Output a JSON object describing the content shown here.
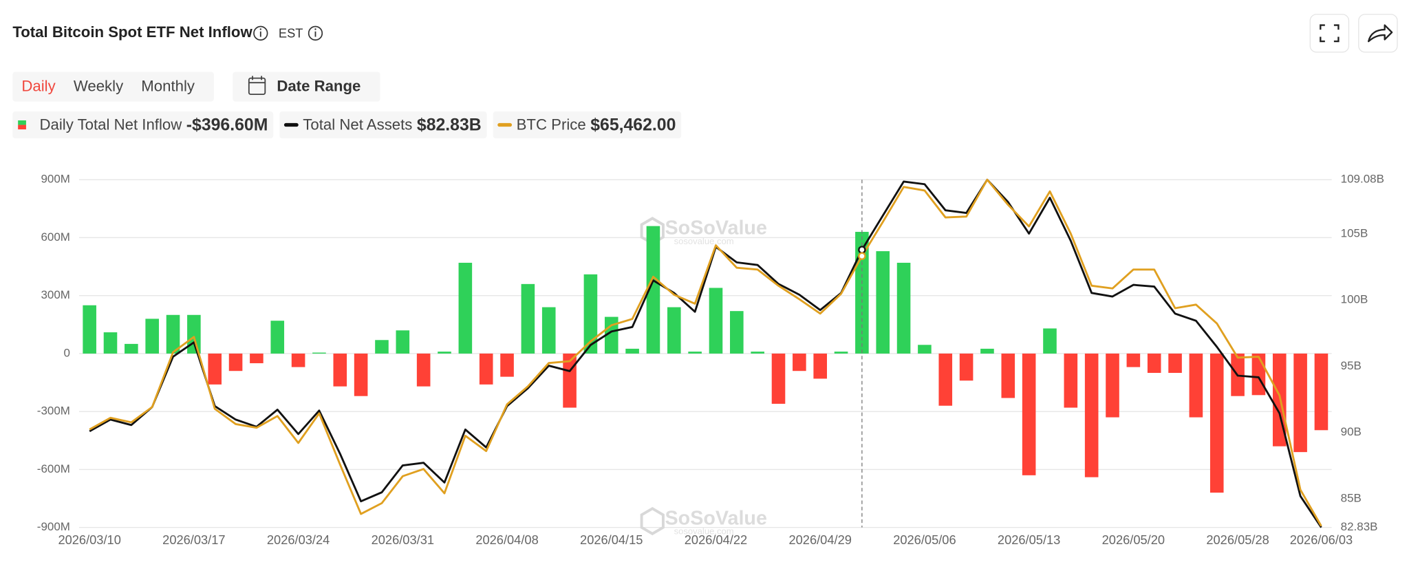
{
  "header": {
    "title": "Total Bitcoin Spot ETF Net Inflow",
    "timezone": "EST",
    "tabs": [
      "Daily",
      "Weekly",
      "Monthly"
    ],
    "active_tab": 0,
    "date_range": "Date Range"
  },
  "chart_data": {
    "type": "combo",
    "categories": [
      "2026/03/10",
      null,
      null,
      null,
      null,
      "2026/03/17",
      null,
      null,
      null,
      null,
      "2026/03/24",
      null,
      null,
      null,
      null,
      "2026/03/31",
      null,
      null,
      null,
      null,
      "2026/04/08",
      null,
      null,
      null,
      null,
      "2026/04/15",
      null,
      null,
      null,
      null,
      "2026/04/22",
      null,
      null,
      null,
      null,
      "2026/04/29",
      null,
      null,
      null,
      null,
      "2026/05/06",
      null,
      null,
      null,
      null,
      "2026/05/13",
      null,
      null,
      null,
      null,
      "2026/05/20",
      null,
      null,
      null,
      null,
      "2026/05/28",
      null,
      null,
      null,
      "2026/06/03"
    ],
    "series": [
      {
        "name": "Daily Total Net Inflow",
        "legend_value": "-$396.60M",
        "type": "bar",
        "positive_color": "#2fd159",
        "negative_color": "#ff4136",
        "values": [
          250,
          110,
          50,
          180,
          200,
          200,
          -160,
          -90,
          -50,
          170,
          -70,
          5,
          -170,
          -220,
          70,
          120,
          -170,
          10,
          470,
          -160,
          -120,
          360,
          240,
          -280,
          410,
          190,
          25,
          660,
          240,
          10,
          340,
          220,
          10,
          -260,
          -90,
          -130,
          10,
          630,
          530,
          470,
          45,
          -270,
          -140,
          25,
          -230,
          -630,
          130,
          -280,
          -640,
          -330,
          -70,
          -100,
          -100,
          -330,
          -720,
          -220,
          -215,
          -480,
          -510,
          -396.6
        ]
      },
      {
        "name": "Total Net Assets",
        "legend_value": "$82.83B",
        "type": "line",
        "axis": "y2",
        "color": "#111111",
        "values": [
          90.09,
          90.97,
          90.56,
          91.92,
          95.72,
          96.8,
          91.99,
          90.97,
          90.43,
          91.72,
          89.88,
          91.65,
          88.39,
          84.8,
          85.48,
          87.51,
          87.71,
          86.22,
          90.22,
          88.87,
          91.99,
          93.34,
          95.04,
          94.63,
          96.6,
          97.62,
          97.96,
          101.48,
          100.53,
          99.11,
          104.01,
          102.84,
          102.64,
          101.21,
          100.4,
          99.24,
          100.53,
          103.79,
          106.37,
          108.94,
          108.74,
          106.77,
          106.57,
          109.08,
          107.39,
          105.01,
          107.72,
          104.47,
          100.53,
          100.26,
          101.14,
          101.01,
          98.97,
          98.43,
          96.46,
          94.29,
          94.16,
          91.45,
          85.2,
          82.83
        ]
      },
      {
        "name": "BTC Price",
        "legend_value": "$65,462.00",
        "type": "line",
        "axis": "y3",
        "color": "#e0a020",
        "values": [
          69794,
          70318,
          70116,
          70802,
          73260,
          73946,
          70721,
          70036,
          69874,
          70398,
          69189,
          70519,
          68222,
          66005,
          66488,
          67698,
          68020,
          66932,
          69512,
          68826,
          70922,
          71729,
          72777,
          72857,
          73744,
          74470,
          74752,
          76646,
          75840,
          75437,
          78057,
          77050,
          76969,
          76243,
          75639,
          74994,
          75881,
          77574,
          79105,
          80677,
          80516,
          79307,
          79347,
          81000,
          79871,
          78904,
          80476,
          78582,
          76243,
          76122,
          76969,
          76969,
          75235,
          75396,
          74551,
          73018,
          73059,
          71326,
          67093,
          65462
        ]
      }
    ],
    "ylim": [
      -900,
      900
    ],
    "yticks": [
      {
        "value": -900,
        "label": "-900M"
      },
      {
        "value": -600,
        "label": "-600M"
      },
      {
        "value": -300,
        "label": "-300M"
      },
      0,
      {
        "value": 300,
        "label": "300M"
      },
      {
        "value": 600,
        "label": "600M"
      },
      {
        "value": 900,
        "label": "900M"
      }
    ],
    "y2lim": [
      82.83,
      109.08
    ],
    "y2ticks": [
      {
        "value": 82.83,
        "label": "82.83B"
      },
      {
        "value": 85,
        "label": "85B"
      },
      {
        "value": 90,
        "label": "90B"
      },
      {
        "value": 95,
        "label": "95B"
      },
      {
        "value": 100,
        "label": "100B"
      },
      {
        "value": 105,
        "label": "105B"
      },
      {
        "value": 109.08,
        "label": "109.08B"
      }
    ],
    "y3lim": [
      65400,
      81000
    ],
    "grid": true,
    "crosshair_index": 37,
    "watermark": "SoSoValue",
    "watermark_url": "sosovalue.com"
  }
}
